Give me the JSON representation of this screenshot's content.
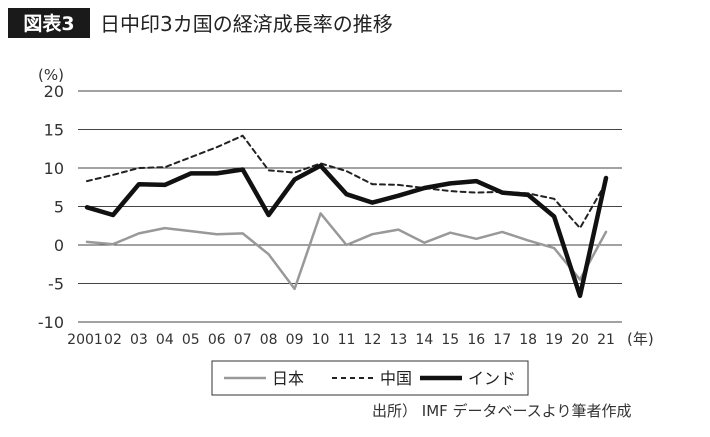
{
  "header": {
    "badge": "図表3",
    "title": "日中印3カ国の経済成長率の推移"
  },
  "source": "出所） IMF データベースより筆者作成",
  "chart_data": {
    "type": "line",
    "unit_label": "(%)",
    "x_unit_label": "(年)",
    "categories": [
      "2001",
      "02",
      "03",
      "04",
      "05",
      "06",
      "07",
      "08",
      "09",
      "10",
      "11",
      "12",
      "13",
      "14",
      "15",
      "16",
      "17",
      "18",
      "19",
      "20",
      "21"
    ],
    "ylim": [
      -10,
      20
    ],
    "yticks": [
      -10,
      -5,
      0,
      5,
      10,
      15,
      20
    ],
    "ytick_labels": [
      "-10",
      "-5",
      "0",
      "5",
      "10",
      "15",
      "20"
    ],
    "grid": true,
    "legend_position": "bottom",
    "series": [
      {
        "name": "日本",
        "color": "#999999",
        "style": "solid",
        "values": [
          0.4,
          0.1,
          1.5,
          2.2,
          1.8,
          1.4,
          1.5,
          -1.2,
          -5.7,
          4.1,
          0.0,
          1.4,
          2.0,
          0.3,
          1.6,
          0.8,
          1.7,
          0.6,
          -0.4,
          -4.5,
          1.7
        ]
      },
      {
        "name": "中国",
        "color": "#222222",
        "style": "dashed",
        "values": [
          8.3,
          9.1,
          10.0,
          10.1,
          11.4,
          12.7,
          14.2,
          9.7,
          9.4,
          10.6,
          9.6,
          7.9,
          7.8,
          7.4,
          7.0,
          6.8,
          6.9,
          6.7,
          6.0,
          2.2,
          8.1
        ]
      },
      {
        "name": "インド",
        "color": "#111111",
        "style": "bold",
        "values": [
          4.9,
          3.9,
          7.9,
          7.8,
          9.3,
          9.3,
          9.8,
          3.9,
          8.5,
          10.3,
          6.6,
          5.5,
          6.4,
          7.4,
          8.0,
          8.3,
          6.8,
          6.5,
          3.7,
          -6.6,
          8.7
        ]
      }
    ]
  }
}
